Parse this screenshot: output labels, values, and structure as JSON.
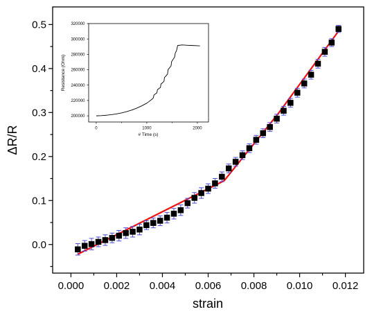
{
  "chart_data": [
    {
      "type": "scatter",
      "xlabel": "strain",
      "ylabel": "ΔR/R",
      "xlim": [
        -0.0008,
        0.0128
      ],
      "ylim": [
        -0.065,
        0.54
      ],
      "x_ticks": [
        0.0,
        0.002,
        0.004,
        0.006,
        0.008,
        0.01,
        0.012
      ],
      "x_tick_labels": [
        "0.000",
        "0.002",
        "0.004",
        "0.006",
        "0.008",
        "0.010",
        "0.012"
      ],
      "y_ticks": [
        0.0,
        0.1,
        0.2,
        0.3,
        0.4,
        0.5
      ],
      "y_tick_labels": [
        "0.0",
        "0.1",
        "0.2",
        "0.3",
        "0.4",
        "0.5"
      ],
      "grid": false,
      "colors": {
        "points": "#000000",
        "error_bars": "#4a4adb",
        "fit": "#ee1111"
      },
      "series": [
        {
          "kind": "points_with_error",
          "x": [
            0.0003,
            0.0006,
            0.0009,
            0.0012,
            0.0015,
            0.0018,
            0.0021,
            0.0024,
            0.0027,
            0.003,
            0.0033,
            0.0036,
            0.0039,
            0.0042,
            0.0045,
            0.0048,
            0.0051,
            0.0054,
            0.0057,
            0.006,
            0.0063,
            0.0066,
            0.0069,
            0.0072,
            0.0075,
            0.0078,
            0.0081,
            0.0084,
            0.0087,
            0.009,
            0.0093,
            0.0096,
            0.0099,
            0.0102,
            0.0105,
            0.0108,
            0.0111,
            0.0114,
            0.0117
          ],
          "y": [
            -0.011,
            -0.003,
            0.001,
            0.006,
            0.01,
            0.015,
            0.02,
            0.026,
            0.029,
            0.034,
            0.044,
            0.049,
            0.054,
            0.061,
            0.07,
            0.078,
            0.094,
            0.106,
            0.117,
            0.127,
            0.139,
            0.154,
            0.173,
            0.188,
            0.203,
            0.219,
            0.238,
            0.253,
            0.267,
            0.286,
            0.304,
            0.322,
            0.345,
            0.366,
            0.386,
            0.411,
            0.438,
            0.459,
            0.49
          ],
          "err": [
            0.013,
            0.012,
            0.013,
            0.011,
            0.012,
            0.011,
            0.012,
            0.012,
            0.012,
            0.012,
            0.01,
            0.011,
            0.011,
            0.012,
            0.012,
            0.012,
            0.011,
            0.012,
            0.012,
            0.011,
            0.011,
            0.011,
            0.01,
            0.01,
            0.01,
            0.01,
            0.01,
            0.01,
            0.01,
            0.01,
            0.01,
            0.01,
            0.01,
            0.01,
            0.01,
            0.01,
            0.01,
            0.009,
            0.008
          ]
        },
        {
          "kind": "fit_line",
          "x": [
            0.0003,
            0.0067,
            0.0091,
            0.0117
          ],
          "y": [
            -0.022,
            0.145,
            0.3,
            0.485
          ]
        }
      ]
    },
    {
      "type": "line",
      "xlabel": "# Time (s)",
      "ylabel": "Resistance (Ohm)",
      "xlim": [
        -150,
        2220
      ],
      "ylim": [
        192000,
        320000
      ],
      "x_ticks": [
        0,
        1000,
        2000
      ],
      "x_tick_labels": [
        "0",
        "1000",
        "2000"
      ],
      "y_ticks": [
        200000,
        220000,
        240000,
        260000,
        280000,
        300000,
        320000
      ],
      "y_tick_labels": [
        "200000",
        "220000",
        "240000",
        "260000",
        "280000",
        "300000",
        "320000"
      ],
      "grid": false,
      "colors": {
        "line": "#000000"
      },
      "series": [
        {
          "x": [
            0,
            100,
            200,
            300,
            400,
            500,
            600,
            700,
            800,
            900,
            1000,
            1050,
            1100,
            1130,
            1140,
            1170,
            1200,
            1210,
            1240,
            1270,
            1280,
            1310,
            1340,
            1350,
            1380,
            1410,
            1420,
            1450,
            1480,
            1490,
            1520,
            1550,
            1560,
            1590,
            1610,
            1700,
            1800,
            1900,
            2000,
            2050
          ],
          "y": [
            200000,
            200300,
            200800,
            201500,
            202500,
            203800,
            205500,
            207500,
            210000,
            213000,
            216500,
            219000,
            221500,
            223500,
            227000,
            228500,
            230000,
            234000,
            235500,
            237000,
            241500,
            243000,
            245000,
            250000,
            252000,
            254500,
            260000,
            262500,
            265000,
            270500,
            273500,
            276500,
            281000,
            285500,
            291500,
            292200,
            291800,
            291500,
            291200,
            291000
          ]
        }
      ]
    }
  ]
}
